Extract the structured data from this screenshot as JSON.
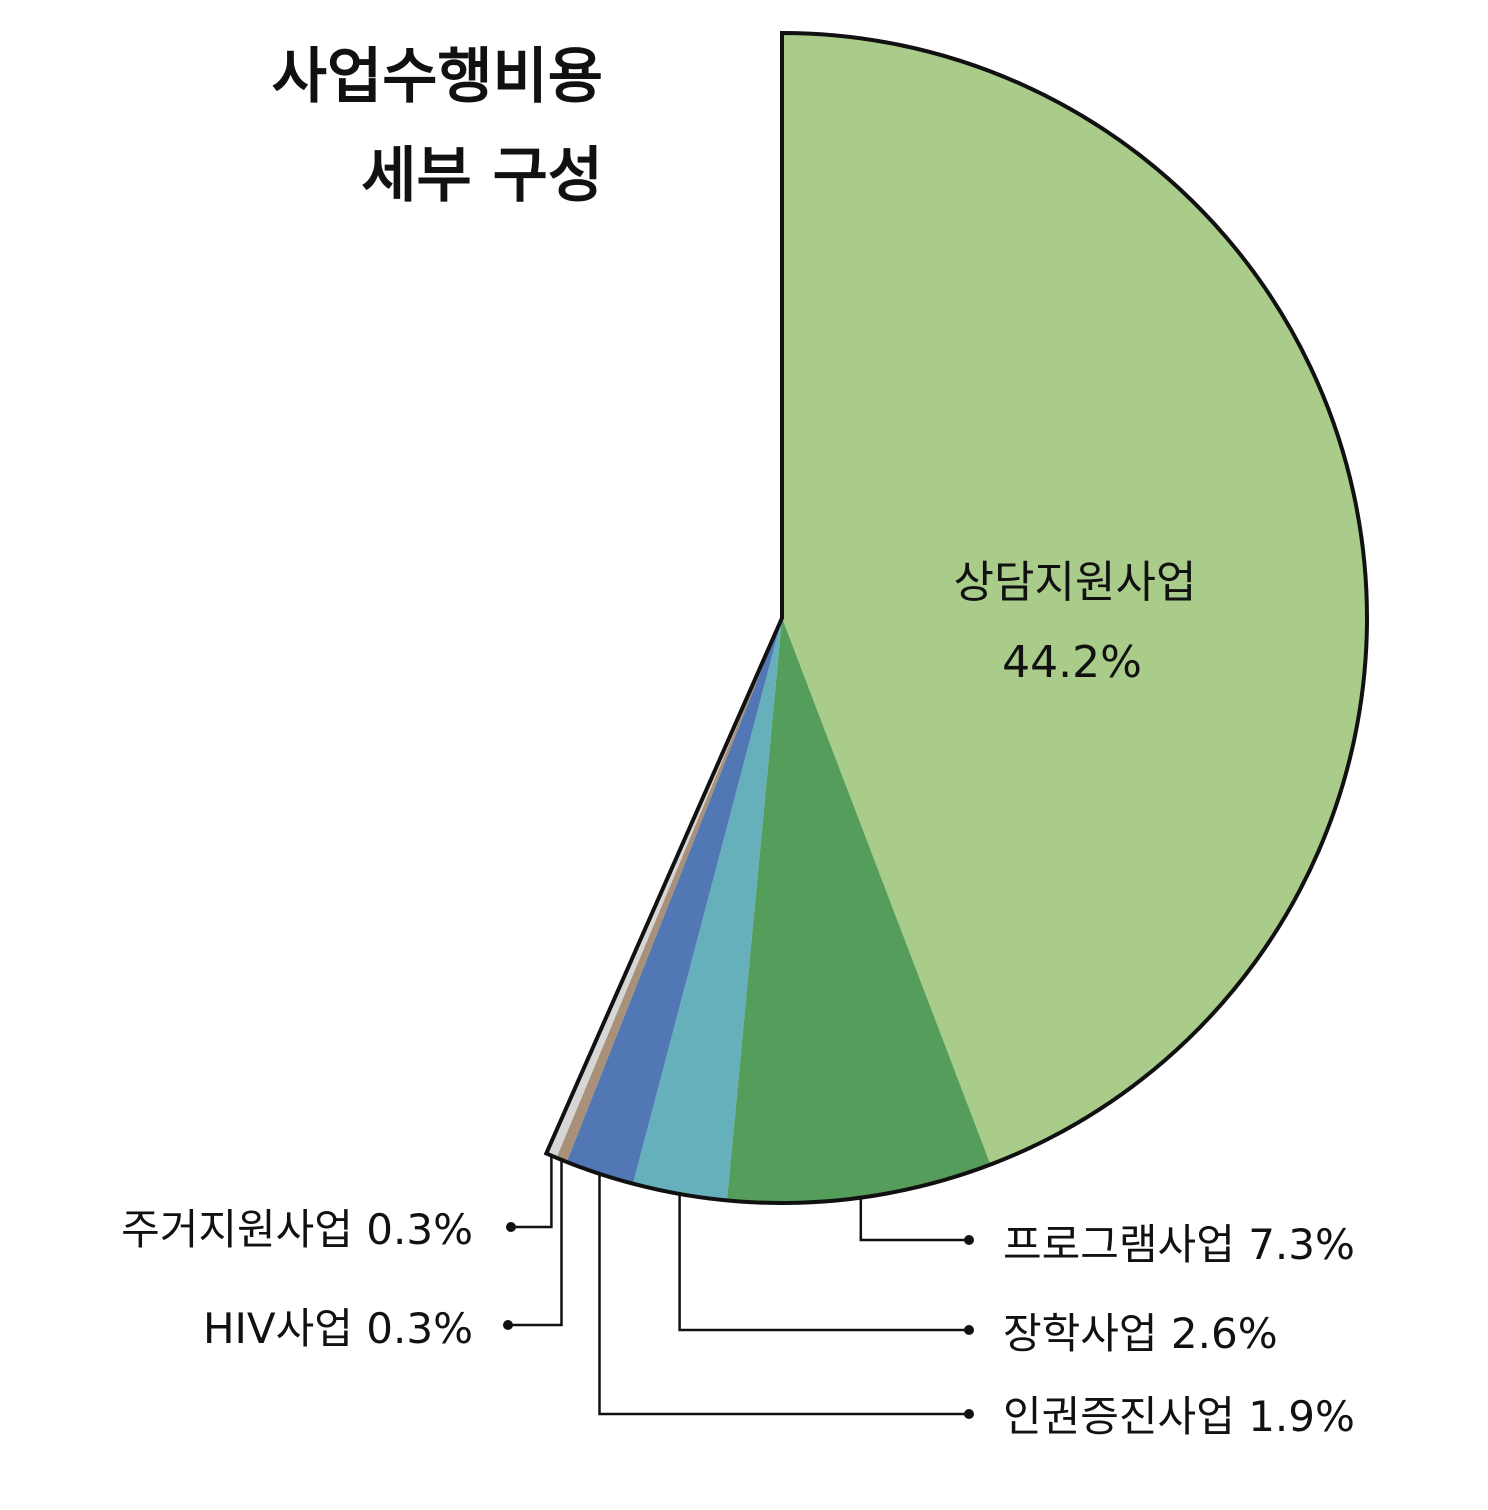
{
  "chart_data": {
    "type": "pie",
    "title_lines": [
      "사업수행비용",
      "세부 구성"
    ],
    "slices": [
      {
        "label": "상담지원사업",
        "value": 44.2,
        "color": "#a9cc8b",
        "display": "44.2%"
      },
      {
        "label": "프로그램사업",
        "value": 7.3,
        "color": "#559d5b",
        "display": "7.3%"
      },
      {
        "label": "장학사업",
        "value": 2.6,
        "color": "#65b0ba",
        "display": "2.6%"
      },
      {
        "label": "인권증진사업",
        "value": 1.9,
        "color": "#5177b5",
        "display": "1.9%"
      },
      {
        "label": "HIV사업",
        "value": 0.3,
        "color": "#a89079",
        "display": "0.3%"
      },
      {
        "label": "주거지원사업",
        "value": 0.3,
        "color": "#d6d6d6",
        "display": "0.3%"
      }
    ],
    "callouts": [
      {
        "label": "프로그램사업",
        "display": "7.3%",
        "text": "프로그램사업 7.3%"
      },
      {
        "label": "장학사업",
        "display": "2.6%",
        "text": "장학사업 2.6%"
      },
      {
        "label": "인권증진사업",
        "display": "1.9%",
        "text": "인권증진사업 1.9%"
      },
      {
        "label": "주거지원사업",
        "display": "0.3%",
        "text": "주거지원사업 0.3%"
      },
      {
        "label": "HIV사업",
        "display": "0.3%",
        "text": "HIV사업 0.3%"
      }
    ]
  }
}
